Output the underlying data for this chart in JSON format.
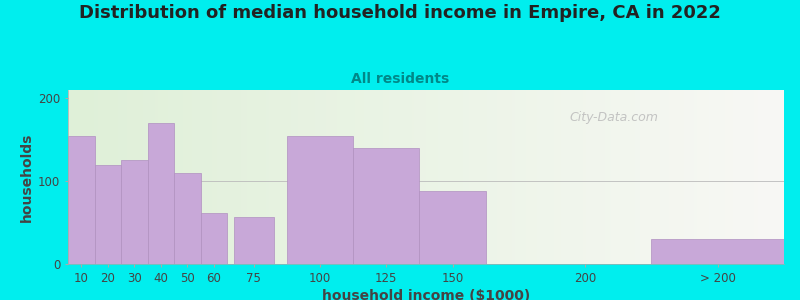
{
  "title": "Distribution of median household income in Empire, CA in 2022",
  "subtitle": "All residents",
  "xlabel": "household income ($1000)",
  "ylabel": "households",
  "background_color": "#00EEEE",
  "plot_bg_color_left": "#dff0d8",
  "plot_bg_color_right": "#f8f8f5",
  "bar_color": "#c8a8d8",
  "bar_edge_color": "#b090c0",
  "categories": [
    "10",
    "20",
    "30",
    "40",
    "50",
    "60",
    "75",
    "100",
    "125",
    "150",
    "200",
    "> 200"
  ],
  "tick_positions": [
    10,
    20,
    30,
    40,
    50,
    60,
    75,
    100,
    125,
    150,
    200,
    250
  ],
  "bar_lefts": [
    5,
    15,
    25,
    35,
    45,
    55,
    67.5,
    87.5,
    112.5,
    137.5,
    175,
    225
  ],
  "bar_widths": [
    10,
    10,
    10,
    10,
    10,
    10,
    15,
    25,
    25,
    25,
    50,
    50
  ],
  "values": [
    155,
    120,
    125,
    170,
    110,
    62,
    57,
    155,
    140,
    88,
    0,
    30
  ],
  "ylim": [
    0,
    210
  ],
  "yticks": [
    0,
    100,
    200
  ],
  "title_fontsize": 13,
  "subtitle_fontsize": 10,
  "label_fontsize": 10,
  "tick_fontsize": 8.5,
  "watermark_text": "City-Data.com",
  "title_color": "#222222",
  "subtitle_color": "#008888",
  "axis_label_color": "#444444",
  "tick_color": "#444444",
  "hline_color": "#bbbbbb",
  "watermark_color": "#bbbbbb"
}
